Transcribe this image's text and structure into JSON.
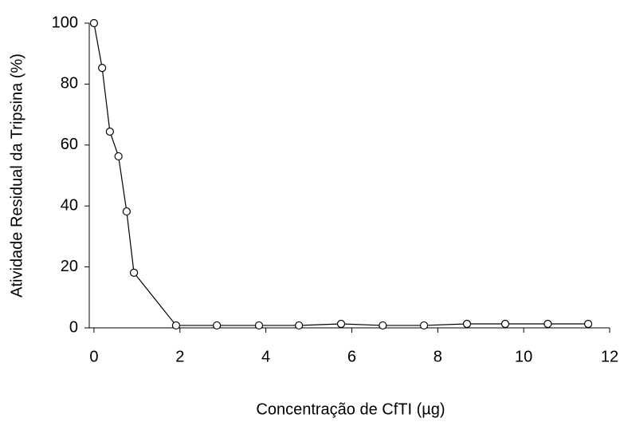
{
  "chart_data": {
    "type": "line",
    "x_label": "Concentração de CfTI (µg)",
    "y_label": "Atividade Residual da Tripsina (%)",
    "x": [
      0,
      0.19,
      0.37,
      0.57,
      0.76,
      0.93,
      1.91,
      2.86,
      3.84,
      4.77,
      5.75,
      6.72,
      7.68,
      8.68,
      9.57,
      10.56,
      11.5
    ],
    "series": [
      {
        "color": "#000000",
        "values": [
          100,
          85.3,
          64.4,
          56.3,
          38.2,
          18.1,
          0.8,
          0.8,
          0.8,
          0.8,
          1.3,
          0.8,
          0.8,
          1.3,
          1.3,
          1.3,
          1.3
        ]
      }
    ],
    "xlim": [
      -0.11,
      12
    ],
    "xticks": [
      0,
      2,
      4,
      6,
      8,
      10,
      12
    ],
    "ylim": [
      0,
      100
    ],
    "yticks": [
      0,
      20,
      40,
      60,
      80,
      100
    ]
  }
}
